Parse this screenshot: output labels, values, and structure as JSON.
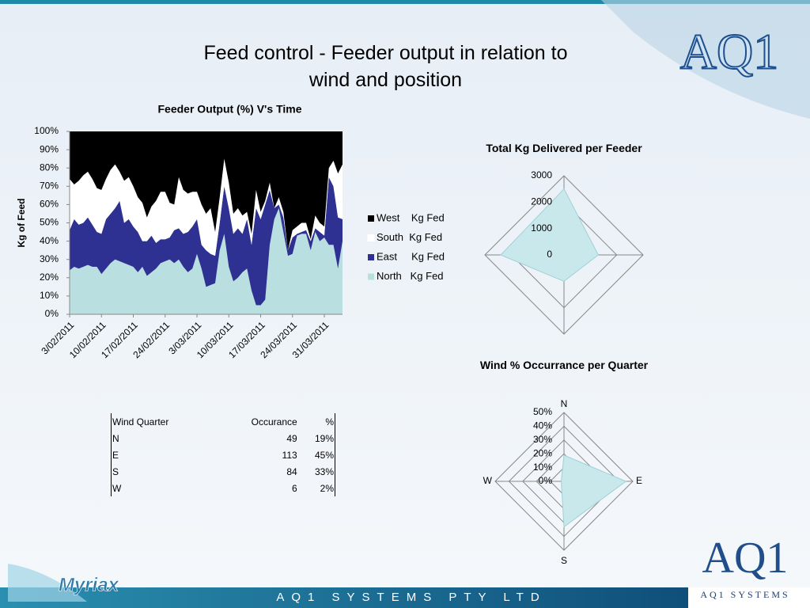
{
  "slide_title": "Feed control - Feeder output in relation to wind and position",
  "branding": {
    "top_logo": "AQ1",
    "myriax": "Myriax",
    "bottom_logo": "AQ1",
    "bottom_caption": "AQ1 SYSTEMS",
    "footer": "AQ1 SYSTEMS PTY LTD"
  },
  "table": {
    "header": [
      "Wind Quarter",
      "Occurance",
      "%"
    ],
    "rows": [
      [
        "N",
        49,
        "19%"
      ],
      [
        "E",
        113,
        "45%"
      ],
      [
        "S",
        84,
        "33%"
      ],
      [
        "W",
        6,
        "2%"
      ]
    ]
  },
  "chart_data": [
    {
      "type": "area",
      "stacked": true,
      "title": "Feeder Output (%) V's Time",
      "y_label": "Kg of Feed",
      "categories": [
        "3/02/2011",
        null,
        null,
        null,
        null,
        null,
        null,
        "10/02/2011",
        null,
        null,
        null,
        null,
        null,
        null,
        "17/02/2011",
        null,
        null,
        null,
        null,
        null,
        null,
        "24/02/2011",
        null,
        null,
        null,
        null,
        null,
        null,
        "3/03/2011",
        null,
        null,
        null,
        null,
        null,
        null,
        "10/03/2011",
        null,
        null,
        null,
        null,
        null,
        null,
        "17/03/2011",
        null,
        null,
        null,
        null,
        null,
        null,
        "24/03/2011",
        null,
        null,
        null,
        null,
        null,
        null,
        "31/03/2011",
        null,
        null,
        null,
        null
      ],
      "series": [
        {
          "name": "North   Kg Fed",
          "color": "#b9dfe1",
          "values": [
            24,
            26,
            25,
            26,
            27,
            26,
            26,
            22,
            25,
            28,
            30,
            29,
            28,
            27,
            26,
            23,
            26,
            21,
            23,
            25,
            28,
            29,
            30,
            28,
            30,
            26,
            23,
            25,
            33,
            25,
            15,
            16,
            17,
            35,
            44,
            26,
            18,
            20,
            23,
            25,
            13,
            5,
            5,
            8,
            38,
            52,
            58,
            45,
            32,
            33,
            43,
            44,
            44,
            35,
            45,
            40,
            42,
            38,
            38,
            25,
            40
          ]
        },
        {
          "name": "East     Kg Fed",
          "color": "#2e3192",
          "values": [
            22,
            26,
            24,
            24,
            26,
            23,
            19,
            22,
            27,
            27,
            28,
            33,
            22,
            25,
            22,
            22,
            14,
            19,
            20,
            14,
            13,
            12,
            12,
            18,
            17,
            18,
            22,
            23,
            19,
            13,
            20,
            17,
            15,
            15,
            26,
            32,
            26,
            27,
            21,
            27,
            25,
            53,
            47,
            52,
            30,
            6,
            2,
            8,
            3,
            9,
            1,
            1,
            2,
            5,
            2,
            5,
            1,
            37,
            32,
            28,
            12
          ]
        },
        {
          "name": "South  Kg Fed",
          "color": "#ffffff",
          "values": [
            28,
            19,
            24,
            26,
            25,
            25,
            24,
            24,
            22,
            24,
            24,
            16,
            23,
            23,
            22,
            19,
            21,
            13,
            16,
            23,
            26,
            26,
            19,
            14,
            28,
            24,
            21,
            19,
            15,
            22,
            20,
            25,
            13,
            14,
            15,
            14,
            11,
            11,
            10,
            4,
            6,
            10,
            4,
            2,
            4,
            0,
            4,
            3,
            0,
            4,
            4,
            5,
            4,
            1,
            7,
            5,
            5,
            5,
            14,
            24,
            30
          ]
        },
        {
          "name": "West    Kg Fed",
          "color": "#000000",
          "values": [
            26,
            29,
            27,
            24,
            22,
            26,
            31,
            32,
            26,
            21,
            18,
            22,
            27,
            25,
            30,
            36,
            39,
            47,
            41,
            38,
            33,
            33,
            39,
            40,
            25,
            32,
            34,
            33,
            33,
            40,
            45,
            42,
            55,
            36,
            15,
            28,
            45,
            42,
            46,
            44,
            56,
            32,
            44,
            38,
            28,
            42,
            36,
            44,
            65,
            54,
            52,
            50,
            50,
            59,
            46,
            50,
            52,
            20,
            16,
            23,
            18
          ]
        }
      ],
      "ylim": [
        0,
        100
      ],
      "yticks": [
        {
          "value": 0,
          "label": "0%"
        },
        {
          "value": 10,
          "label": "10%"
        },
        {
          "value": 20,
          "label": "20%"
        },
        {
          "value": 30,
          "label": "30%"
        },
        {
          "value": 40,
          "label": "40%"
        },
        {
          "value": 50,
          "label": "50%"
        },
        {
          "value": 60,
          "label": "60%"
        },
        {
          "value": 70,
          "label": "70%"
        },
        {
          "value": 80,
          "label": "80%"
        },
        {
          "value": 90,
          "label": "90%"
        },
        {
          "value": 100,
          "label": "100%"
        }
      ],
      "legend": "right"
    },
    {
      "type": "radar",
      "title": "Total Kg Delivered per Feeder",
      "categories": [
        null,
        null,
        null,
        null
      ],
      "values": [
        2500,
        1300,
        1000,
        2400
      ],
      "color": "#c9e8ec",
      "rlim": [
        0,
        3000
      ],
      "rticks": [
        0,
        1000,
        2000,
        3000
      ]
    },
    {
      "type": "radar",
      "title": "Wind % Occurrance per Quarter",
      "categories": [
        "N",
        "E",
        "S",
        "W"
      ],
      "values": [
        19,
        45,
        33,
        2
      ],
      "color": "#c9e8ec",
      "rlim": [
        0,
        50
      ],
      "rticks": [
        {
          "value": 0,
          "label": "0%"
        },
        {
          "value": 10,
          "label": "10%"
        },
        {
          "value": 20,
          "label": "20%"
        },
        {
          "value": 30,
          "label": "30%"
        },
        {
          "value": 40,
          "label": "40%"
        },
        {
          "value": 50,
          "label": "50%"
        }
      ]
    }
  ]
}
